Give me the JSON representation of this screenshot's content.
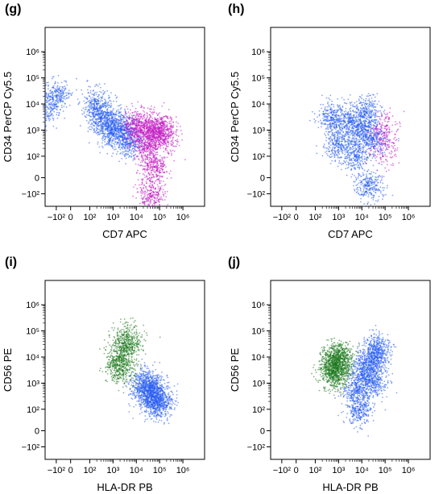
{
  "chart_data": [
    {
      "type": "scatter",
      "panel_label": "(g)",
      "xlabel": "CD7 APC",
      "ylabel": "CD34 PerCP Cy5.5",
      "scale": "biexponential",
      "xlim": [
        -300,
        1000000
      ],
      "ylim": [
        -300,
        1000000
      ],
      "x_ticks": [
        "−10²",
        "0",
        "10²",
        "10³",
        "10⁴",
        "10⁵",
        "10⁶"
      ],
      "y_ticks": [
        "−10²",
        "0",
        "10²",
        "10³",
        "10⁴",
        "10⁵",
        "10⁶"
      ],
      "series": [
        {
          "color": "#2a5ef0",
          "density": "high",
          "points": [
            [
              1000,
              2000
            ],
            [
              300,
              3000
            ],
            [
              -200,
              5000
            ],
            [
              3000,
              1000
            ],
            [
              200,
              10000
            ],
            [
              800,
              800
            ],
            [
              -100,
              20000
            ],
            [
              5000,
              300
            ]
          ]
        },
        {
          "color": "#c21ec2",
          "density": "high",
          "points": [
            [
              50000,
              1000
            ],
            [
              20000,
              800
            ],
            [
              100000,
              1200
            ],
            [
              30000,
              200
            ],
            [
              60000,
              50
            ],
            [
              150000,
              600
            ],
            [
              10000,
              1500
            ],
            [
              40000,
              -100
            ]
          ]
        }
      ]
    },
    {
      "type": "scatter",
      "panel_label": "(h)",
      "xlabel": "CD7 APC",
      "ylabel": "CD34 PerCP Cy5.5",
      "scale": "biexponential",
      "xlim": [
        -300,
        1000000
      ],
      "ylim": [
        -300,
        1000000
      ],
      "x_ticks": [
        "−10²",
        "0",
        "10²",
        "10³",
        "10⁴",
        "10⁵",
        "10⁶"
      ],
      "y_ticks": [
        "−10²",
        "0",
        "10²",
        "10³",
        "10⁴",
        "10⁵",
        "10⁶"
      ],
      "series": [
        {
          "color": "#2a5ef0",
          "density": "high",
          "points": [
            [
              10000,
              1000
            ],
            [
              3000,
              2000
            ],
            [
              30000,
              500
            ],
            [
              1000,
              300
            ],
            [
              5000,
              100
            ],
            [
              20000,
              -50
            ],
            [
              500,
              3000
            ],
            [
              15000,
              5000
            ]
          ]
        },
        {
          "color": "#c21ec2",
          "density": "low",
          "points": [
            [
              90000,
              800
            ],
            [
              100000,
              300
            ],
            [
              80000,
              100
            ],
            [
              120000,
              1500
            ]
          ]
        }
      ]
    },
    {
      "type": "scatter",
      "panel_label": "(i)",
      "xlabel": "HLA-DR PB",
      "ylabel": "CD56 PE",
      "scale": "biexponential",
      "xlim": [
        -300,
        1000000
      ],
      "ylim": [
        -300,
        1000000
      ],
      "x_ticks": [
        "−10²",
        "0",
        "10²",
        "10³",
        "10⁴",
        "10⁵",
        "10⁶"
      ],
      "y_ticks": [
        "−10²",
        "0",
        "10²",
        "10³",
        "10⁴",
        "10⁵",
        "10⁶"
      ],
      "series": [
        {
          "color": "#2a5ef0",
          "density": "high",
          "points": [
            [
              50000,
              300
            ],
            [
              30000,
              500
            ],
            [
              80000,
              200
            ],
            [
              20000,
              1000
            ],
            [
              100000,
              150
            ],
            [
              40000,
              700
            ]
          ]
        },
        {
          "color": "#1f7a1f",
          "density": "medium",
          "points": [
            [
              2000,
              10000
            ],
            [
              3000,
              20000
            ],
            [
              1500,
              5000
            ],
            [
              5000,
              30000
            ],
            [
              2500,
              3000
            ],
            [
              4000,
              60000
            ]
          ]
        }
      ]
    },
    {
      "type": "scatter",
      "panel_label": "(j)",
      "xlabel": "HLA-DR PB",
      "ylabel": "CD56 PE",
      "scale": "biexponential",
      "xlim": [
        -300,
        1000000
      ],
      "ylim": [
        -300,
        1000000
      ],
      "x_ticks": [
        "−10²",
        "0",
        "10²",
        "10³",
        "10⁴",
        "10⁵",
        "10⁶"
      ],
      "y_ticks": [
        "−10²",
        "0",
        "10²",
        "10³",
        "10⁴",
        "10⁵",
        "10⁶"
      ],
      "series": [
        {
          "color": "#2a5ef0",
          "density": "high",
          "points": [
            [
              20000,
              5000
            ],
            [
              10000,
              2000
            ],
            [
              40000,
              10000
            ],
            [
              6000,
              500
            ],
            [
              8000,
              100
            ],
            [
              50000,
              20000
            ],
            [
              30000,
              1000
            ]
          ]
        },
        {
          "color": "#1f7a1f",
          "density": "high",
          "points": [
            [
              800,
              5000
            ],
            [
              600,
              3000
            ],
            [
              1000,
              8000
            ],
            [
              700,
              2000
            ],
            [
              900,
              12000
            ]
          ]
        }
      ]
    }
  ]
}
